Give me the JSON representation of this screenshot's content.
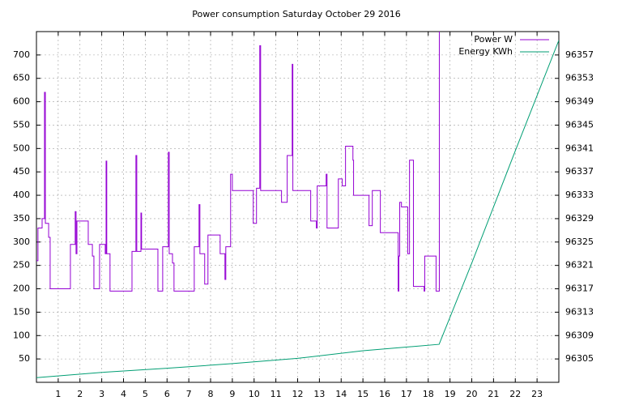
{
  "chart_data": {
    "type": "line",
    "title": "Power consumption Saturday October 29 2016",
    "xlim": [
      0,
      24
    ],
    "xticks": [
      1,
      2,
      3,
      4,
      5,
      6,
      7,
      8,
      9,
      10,
      11,
      12,
      13,
      14,
      15,
      16,
      17,
      18,
      19,
      20,
      21,
      22,
      23
    ],
    "ylim": [
      0,
      750
    ],
    "yticks": [
      50,
      100,
      150,
      200,
      250,
      300,
      350,
      400,
      450,
      500,
      550,
      600,
      650,
      700
    ],
    "y2lim": [
      96301,
      96361
    ],
    "y2ticks": [
      96305,
      96309,
      96313,
      96317,
      96321,
      96325,
      96329,
      96333,
      96337,
      96341,
      96345,
      96349,
      96353,
      96357
    ],
    "grid": true,
    "legend": "top-right",
    "series": [
      {
        "name": "Power W",
        "color": "#9400d3",
        "x": [
          0,
          0.07,
          0.07,
          0.26,
          0.26,
          0.37,
          0.37,
          0.41,
          0.41,
          0.56,
          0.56,
          0.63,
          0.63,
          1.56,
          1.56,
          1.78,
          1.78,
          1.82,
          1.82,
          1.86,
          1.86,
          2.38,
          2.38,
          2.57,
          2.57,
          2.64,
          2.64,
          2.9,
          2.9,
          3.16,
          3.16,
          3.2,
          3.2,
          3.23,
          3.23,
          3.38,
          3.38,
          4.39,
          4.39,
          4.57,
          4.57,
          4.61,
          4.61,
          4.8,
          4.8,
          4.83,
          4.83,
          5.58,
          5.58,
          5.8,
          5.8,
          6.06,
          6.06,
          6.1,
          6.1,
          6.25,
          6.25,
          6.32,
          6.32,
          7.25,
          7.25,
          7.47,
          7.47,
          7.51,
          7.51,
          7.73,
          7.73,
          7.88,
          7.88,
          8.44,
          8.44,
          8.66,
          8.66,
          8.7,
          8.7,
          8.92,
          8.92,
          9.0,
          9.0,
          9.96,
          9.96,
          10.11,
          10.11,
          10.26,
          10.26,
          10.3,
          10.3,
          11.26,
          11.26,
          11.52,
          11.52,
          11.75,
          11.75,
          11.78,
          11.78,
          12.6,
          12.6,
          12.86,
          12.86,
          12.9,
          12.9,
          13.31,
          13.31,
          13.35,
          13.35,
          13.87,
          13.87,
          14.05,
          14.05,
          14.2,
          14.2,
          14.54,
          14.54,
          14.57,
          14.57,
          15.28,
          15.28,
          15.43,
          15.43,
          15.8,
          15.8,
          16.62,
          16.62,
          16.65,
          16.65,
          16.69,
          16.69,
          16.77,
          16.77,
          17.06,
          17.06,
          17.14,
          17.14,
          17.32,
          17.32,
          17.81,
          17.81,
          17.84,
          17.84,
          18.36,
          18.36,
          18.51,
          18.51
        ],
        "values": [
          260,
          260,
          330,
          330,
          350,
          350,
          620,
          620,
          340,
          340,
          310,
          310,
          200,
          200,
          295,
          295,
          365,
          365,
          275,
          275,
          345,
          345,
          295,
          295,
          270,
          270,
          200,
          200,
          295,
          295,
          275,
          275,
          473,
          473,
          275,
          275,
          195,
          195,
          280,
          280,
          485,
          485,
          280,
          280,
          362,
          362,
          285,
          285,
          195,
          195,
          290,
          290,
          492,
          492,
          275,
          275,
          255,
          255,
          195,
          195,
          290,
          290,
          380,
          380,
          275,
          275,
          210,
          210,
          315,
          315,
          275,
          275,
          220,
          220,
          290,
          290,
          445,
          445,
          410,
          410,
          340,
          340,
          415,
          415,
          720,
          720,
          410,
          410,
          385,
          385,
          485,
          485,
          680,
          680,
          410,
          410,
          345,
          345,
          330,
          330,
          420,
          420,
          445,
          445,
          330,
          330,
          435,
          435,
          420,
          420,
          505,
          505,
          475,
          475,
          400,
          400,
          335,
          335,
          410,
          410,
          320,
          320,
          195,
          195,
          270,
          270,
          385,
          385,
          375,
          375,
          275,
          275,
          475,
          475,
          205,
          205,
          195,
          195,
          270,
          270,
          195,
          195,
          750
        ]
      },
      {
        "name": "Energy KWh",
        "color": "#009e73",
        "axis": "y2",
        "x": [
          0,
          3,
          6,
          9,
          12,
          15,
          18.5,
          20,
          22,
          24
        ],
        "values": [
          96301.8,
          96302.7,
          96303.4,
          96304.2,
          96305.1,
          96306.4,
          96307.5,
          96321.4,
          96340.6,
          96359.5
        ]
      }
    ]
  }
}
